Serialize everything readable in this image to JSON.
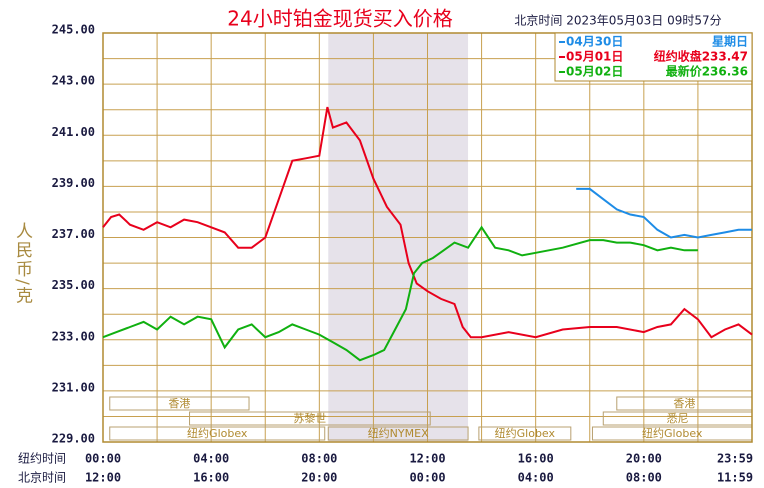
{
  "chart_data": {
    "type": "line",
    "title": "24小时铂金现货买入价格",
    "subtitle": "北京时间  2023年05月03日 09时57分",
    "y_label": "人民币/克",
    "x_row_labels": [
      "纽约时间",
      "北京时间"
    ],
    "xlim": [
      0,
      24
    ],
    "ylim": [
      229,
      245
    ],
    "yticks": [
      {
        "value": 245,
        "label": "245.00"
      },
      {
        "value": 243,
        "label": "243.00"
      },
      {
        "value": 241,
        "label": "241.00"
      },
      {
        "value": 239,
        "label": "239.00"
      },
      {
        "value": 237,
        "label": "237.00"
      },
      {
        "value": 235,
        "label": "235.00"
      },
      {
        "value": 233,
        "label": "233.00"
      },
      {
        "value": 231,
        "label": "231.00"
      },
      {
        "value": 229,
        "label": "229.00"
      }
    ],
    "y_minor_ticks": [
      244,
      242,
      240,
      238,
      236,
      234,
      232,
      230
    ],
    "xticks": [
      {
        "value": 0,
        "label": "00:00"
      },
      {
        "value": 4,
        "label": "04:00"
      },
      {
        "value": 8,
        "label": "08:00"
      },
      {
        "value": 12,
        "label": "12:00"
      },
      {
        "value": 16,
        "label": "16:00"
      },
      {
        "value": 20,
        "label": "20:00"
      },
      {
        "value": 24,
        "label": "23:59"
      }
    ],
    "x2ticks": [
      {
        "value": 0,
        "label": "12:00"
      },
      {
        "value": 4,
        "label": "16:00"
      },
      {
        "value": 8,
        "label": "20:00"
      },
      {
        "value": 12,
        "label": "00:00"
      },
      {
        "value": 16,
        "label": "04:00"
      },
      {
        "value": 20,
        "label": "08:00"
      },
      {
        "value": 24,
        "label": "11:59"
      }
    ],
    "x_minor_ticks": [
      2,
      6,
      10,
      14,
      18,
      22
    ],
    "highlight": {
      "start": 8.33,
      "end": 13.5,
      "color": "#e6e2ea"
    },
    "sessions": [
      {
        "label": "香港",
        "start": 0.25,
        "end": 5.4,
        "row": 0
      },
      {
        "label": "香港",
        "start": 19,
        "end": 24,
        "row": 0
      },
      {
        "label": "苏黎世",
        "start": 3.2,
        "end": 12.1,
        "row": 1
      },
      {
        "label": "悉尼",
        "start": 18.5,
        "end": 24,
        "row": 1
      },
      {
        "label": "纽约Globex",
        "start": 0.25,
        "end": 8.2,
        "row": 2
      },
      {
        "label": "纽约NYMEX",
        "start": 8.33,
        "end": 13.5,
        "row": 2
      },
      {
        "label": "纽约Globex",
        "start": 13.9,
        "end": 17.3,
        "row": 2
      },
      {
        "label": "纽约Globex",
        "start": 18.1,
        "end": 24,
        "row": 2
      }
    ],
    "series": [
      {
        "name": "04月30日",
        "note": "星期日",
        "color": "#1e8ce6",
        "x": [
          17.5,
          18,
          18.5,
          19,
          19.5,
          20,
          20.5,
          21,
          21.5,
          22,
          22.5,
          23,
          23.5,
          24
        ],
        "values": [
          238.9,
          238.9,
          238.5,
          238.1,
          237.9,
          237.8,
          237.3,
          237,
          237.1,
          237,
          237.1,
          237.2,
          237.3,
          237.3
        ]
      },
      {
        "name": "05月01日",
        "note": "纽约收盘233.47",
        "color": "#e8001c",
        "x": [
          0,
          0.3,
          0.6,
          1,
          1.5,
          2,
          2.5,
          3,
          3.5,
          4,
          4.5,
          5,
          5.5,
          6,
          6.5,
          7,
          7.5,
          8,
          8.3,
          8.5,
          9,
          9.5,
          10,
          10.5,
          11,
          11.3,
          11.6,
          12,
          12.5,
          13,
          13.3,
          13.6,
          14,
          15,
          16,
          17,
          18,
          19,
          20,
          20.5,
          21,
          21.5,
          22,
          22.5,
          23,
          23.5,
          24
        ],
        "values": [
          237.4,
          237.8,
          237.9,
          237.5,
          237.3,
          237.6,
          237.4,
          237.7,
          237.6,
          237.4,
          237.2,
          236.6,
          236.6,
          237,
          238.5,
          240,
          240.1,
          240.2,
          242.1,
          241.3,
          241.5,
          240.8,
          239.3,
          238.2,
          237.5,
          236,
          235.2,
          234.9,
          234.6,
          234.4,
          233.5,
          233.1,
          233.1,
          233.3,
          233.1,
          233.4,
          233.5,
          233.5,
          233.3,
          233.5,
          233.6,
          234.2,
          233.8,
          233.1,
          233.4,
          233.6,
          233.2
        ]
      },
      {
        "name": "05月02日",
        "note": "最新价236.36",
        "color": "#10b010",
        "x": [
          0,
          0.5,
          1,
          1.5,
          2,
          2.5,
          3,
          3.5,
          4,
          4.5,
          5,
          5.5,
          6,
          6.5,
          7,
          7.5,
          8,
          8.5,
          9,
          9.5,
          10,
          10.4,
          10.8,
          11.2,
          11.5,
          11.8,
          12.2,
          12.6,
          13,
          13.5,
          14,
          14.5,
          15,
          15.5,
          16,
          17,
          18,
          18.5,
          19,
          19.5,
          20,
          20.5,
          21,
          21.5,
          22
        ],
        "values": [
          233.1,
          233.3,
          233.5,
          233.7,
          233.4,
          233.9,
          233.6,
          233.9,
          233.8,
          232.7,
          233.4,
          233.6,
          233.1,
          233.3,
          233.6,
          233.4,
          233.2,
          232.9,
          232.6,
          232.2,
          232.4,
          232.6,
          233.4,
          234.2,
          235.6,
          236.0,
          236.2,
          236.5,
          236.8,
          236.6,
          237.4,
          236.6,
          236.5,
          236.3,
          236.4,
          236.6,
          236.9,
          236.9,
          236.8,
          236.8,
          236.7,
          236.5,
          236.6,
          236.5,
          236.5
        ]
      }
    ]
  }
}
